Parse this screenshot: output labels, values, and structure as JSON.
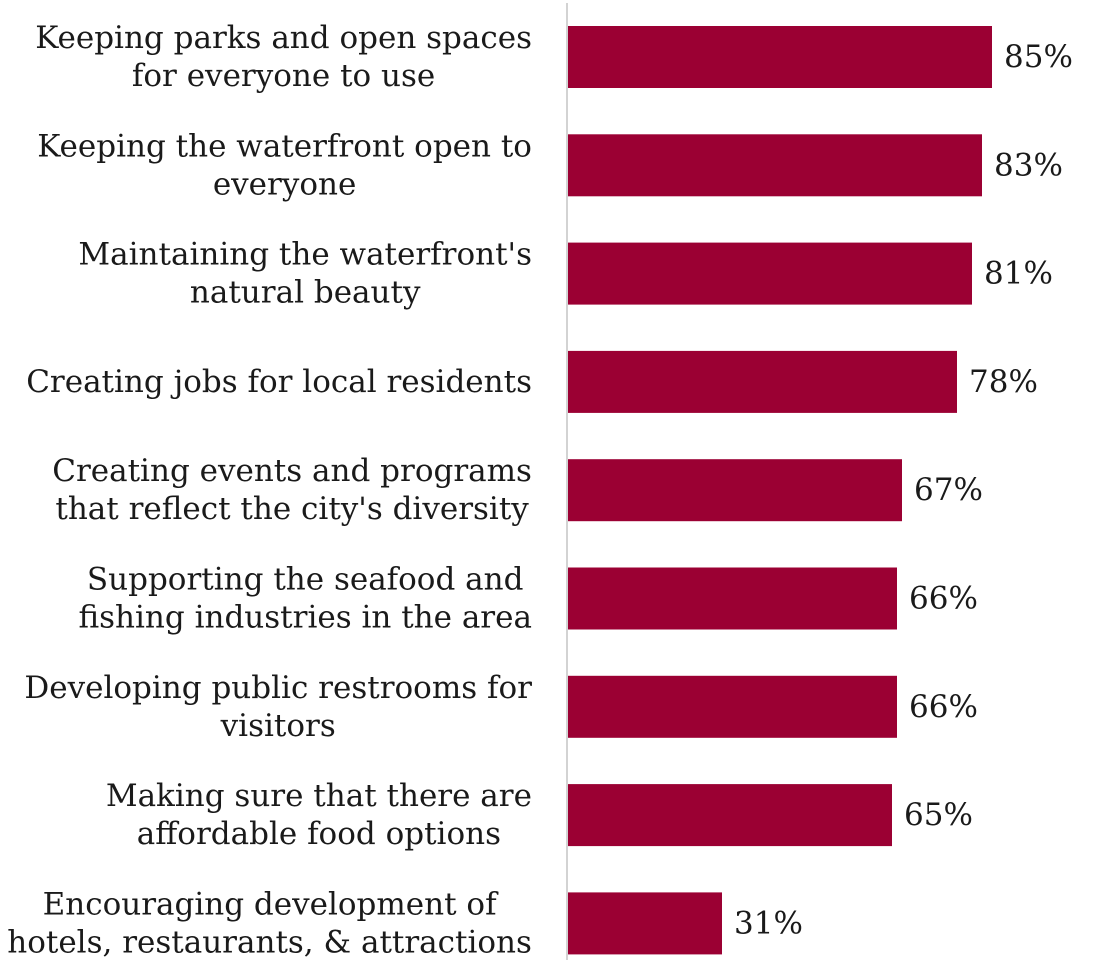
{
  "colors": {
    "bar": "#9b0033",
    "axis": "#d3d3d3",
    "text": "#1a1a1a"
  },
  "chart_data": {
    "type": "bar",
    "orientation": "horizontal",
    "categories": [
      [
        "Keeping parks and open spaces",
        "for everyone to use"
      ],
      [
        "Keeping the waterfront open to",
        "everyone"
      ],
      [
        "Maintaining the waterfront's",
        "natural beauty"
      ],
      [
        "Creating jobs for local residents"
      ],
      [
        "Creating events and programs",
        "that reflect the city's diversity"
      ],
      [
        "Supporting the seafood and",
        "fishing industries in the area"
      ],
      [
        "Developing public restrooms for",
        "visitors"
      ],
      [
        "Making sure that there are",
        "affordable food options"
      ],
      [
        "Encouraging development of",
        "hotels, restaurants, & attractions"
      ]
    ],
    "values": [
      85,
      83,
      81,
      78,
      67,
      66,
      66,
      65,
      31
    ],
    "value_labels": [
      "85%",
      "83%",
      "81%",
      "78%",
      "67%",
      "66%",
      "66%",
      "65%",
      "31%"
    ],
    "xlim": [
      0,
      100
    ],
    "grid": false,
    "legend": "none"
  }
}
